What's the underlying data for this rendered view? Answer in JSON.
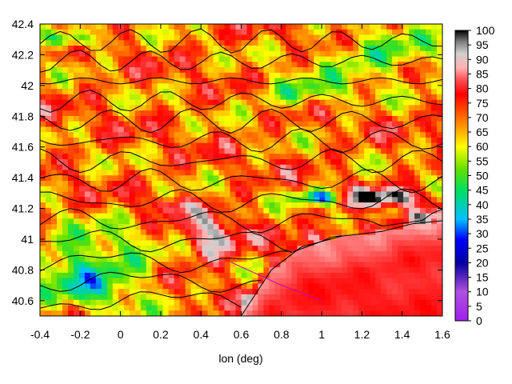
{
  "chart_data": {
    "type": "heatmap",
    "title": "",
    "xlabel": "lon (deg)",
    "ylabel": "",
    "xlim": [
      -0.4,
      1.6
    ],
    "ylim": [
      40.5,
      42.4
    ],
    "xticks": [
      "-0.4",
      "-0.2",
      "0",
      "0.2",
      "0.4",
      "0.6",
      "0.8",
      "1",
      "1.2",
      "1.4",
      "1.6"
    ],
    "yticks": [
      "40.6",
      "40.8",
      "41",
      "41.2",
      "41.4",
      "41.6",
      "41.8",
      "42",
      "42.2",
      "42.4"
    ],
    "colorbar": {
      "range": [
        0,
        100
      ],
      "ticks": [
        "0",
        "5",
        "10",
        "15",
        "20",
        "25",
        "30",
        "35",
        "40",
        "45",
        "50",
        "55",
        "60",
        "65",
        "70",
        "75",
        "80",
        "85",
        "90",
        "95",
        "100"
      ],
      "stops": [
        [
          0,
          "#a020f0"
        ],
        [
          10,
          "#b050e0"
        ],
        [
          20,
          "#0000a0"
        ],
        [
          28,
          "#0000ff"
        ],
        [
          35,
          "#00c0ff"
        ],
        [
          45,
          "#00e060"
        ],
        [
          52,
          "#60e000"
        ],
        [
          60,
          "#ffff00"
        ],
        [
          65,
          "#ffb000"
        ],
        [
          72,
          "#ff5000"
        ],
        [
          78,
          "#ff0000"
        ],
        [
          83,
          "#ff5050"
        ],
        [
          87,
          "#ffb0b0"
        ],
        [
          92,
          "#d0d0d0"
        ],
        [
          96,
          "#808080"
        ],
        [
          100,
          "#000000"
        ]
      ]
    },
    "features": {
      "sea_boundary": [
        [
          0.6,
          40.5
        ],
        [
          0.75,
          40.8
        ],
        [
          0.9,
          40.95
        ],
        [
          1.1,
          41.02
        ],
        [
          1.3,
          41.05
        ],
        [
          1.45,
          41.1
        ],
        [
          1.6,
          41.12
        ]
      ],
      "delta": [
        [
          0.55,
          40.85
        ],
        [
          0.8,
          40.7
        ],
        [
          1.0,
          40.6
        ]
      ]
    }
  }
}
